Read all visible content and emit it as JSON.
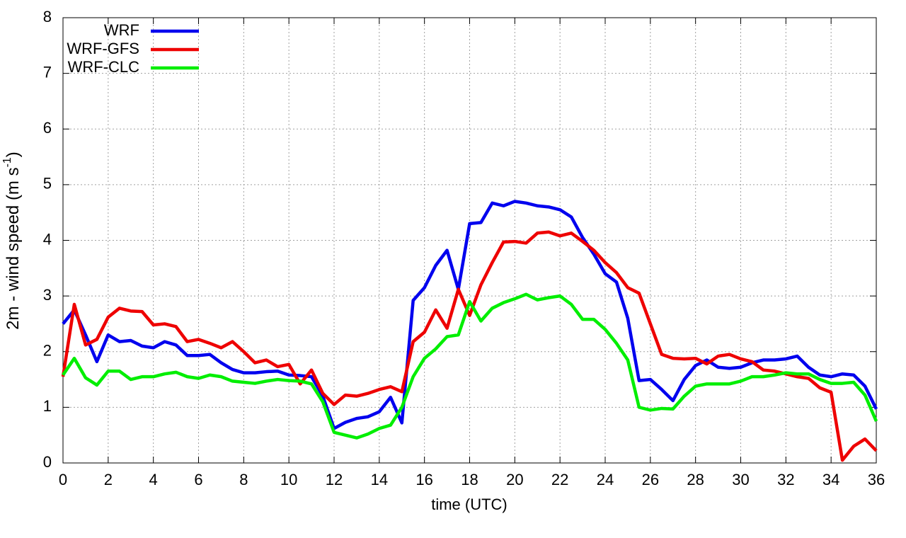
{
  "chart_data": {
    "type": "line",
    "xlabel": "time (UTC)",
    "ylabel": {
      "main": "2m - wind speed  (m s",
      "sup": "-1",
      "end": ")"
    },
    "x": [
      0,
      0.5,
      1,
      1.5,
      2,
      2.5,
      3,
      3.5,
      4,
      4.5,
      5,
      5.5,
      6,
      6.5,
      7,
      7.5,
      8,
      8.5,
      9,
      9.5,
      10,
      10.5,
      11,
      11.5,
      12,
      12.5,
      13,
      13.5,
      14,
      14.5,
      15,
      15.5,
      16,
      16.5,
      17,
      17.5,
      18,
      18.5,
      19,
      19.5,
      20,
      20.5,
      21,
      21.5,
      22,
      22.5,
      23,
      23.5,
      24,
      24.5,
      25,
      25.5,
      26,
      26.5,
      27,
      27.5,
      28,
      28.5,
      29,
      29.5,
      30,
      30.5,
      31,
      31.5,
      32,
      32.5,
      33,
      33.5,
      34,
      34.5,
      35,
      35.5,
      36
    ],
    "series": [
      {
        "name": "WRF",
        "color": "#0000ee",
        "values": [
          2.5,
          2.75,
          2.3,
          1.82,
          2.3,
          2.18,
          2.2,
          2.1,
          2.07,
          2.18,
          2.12,
          1.93,
          1.93,
          1.95,
          1.8,
          1.68,
          1.62,
          1.62,
          1.64,
          1.65,
          1.58,
          1.57,
          1.55,
          1.2,
          0.62,
          0.73,
          0.8,
          0.83,
          0.92,
          1.18,
          0.72,
          2.92,
          3.15,
          3.55,
          3.82,
          3.12,
          4.3,
          4.32,
          4.67,
          4.62,
          4.7,
          4.67,
          4.62,
          4.6,
          4.55,
          4.42,
          4.05,
          3.75,
          3.4,
          3.25,
          2.6,
          1.48,
          1.5,
          1.32,
          1.12,
          1.5,
          1.75,
          1.85,
          1.72,
          1.7,
          1.72,
          1.8,
          1.85,
          1.85,
          1.87,
          1.92,
          1.72,
          1.58,
          1.55,
          1.6,
          1.58,
          1.38,
          0.97
        ]
      },
      {
        "name": "WRF-GFS",
        "color": "#ee0000",
        "values": [
          1.55,
          2.85,
          2.12,
          2.22,
          2.62,
          2.78,
          2.73,
          2.72,
          2.48,
          2.5,
          2.45,
          2.18,
          2.22,
          2.15,
          2.07,
          2.18,
          2.0,
          1.8,
          1.85,
          1.73,
          1.77,
          1.42,
          1.67,
          1.25,
          1.05,
          1.22,
          1.2,
          1.25,
          1.32,
          1.37,
          1.28,
          2.18,
          2.35,
          2.75,
          2.42,
          3.12,
          2.65,
          3.2,
          3.6,
          3.97,
          3.98,
          3.95,
          4.13,
          4.15,
          4.08,
          4.13,
          3.98,
          3.82,
          3.6,
          3.42,
          3.15,
          3.05,
          2.5,
          1.95,
          1.88,
          1.87,
          1.88,
          1.78,
          1.92,
          1.95,
          1.87,
          1.82,
          1.67,
          1.65,
          1.6,
          1.55,
          1.52,
          1.35,
          1.27,
          0.05,
          0.3,
          0.43,
          0.22
        ]
      },
      {
        "name": "WRF-CLC",
        "color": "#00ee00",
        "values": [
          1.58,
          1.88,
          1.53,
          1.4,
          1.65,
          1.65,
          1.5,
          1.55,
          1.55,
          1.6,
          1.63,
          1.55,
          1.52,
          1.58,
          1.55,
          1.47,
          1.45,
          1.43,
          1.47,
          1.5,
          1.48,
          1.47,
          1.42,
          1.1,
          0.55,
          0.5,
          0.45,
          0.52,
          0.62,
          0.68,
          1.0,
          1.55,
          1.88,
          2.05,
          2.27,
          2.3,
          2.9,
          2.55,
          2.78,
          2.88,
          2.95,
          3.03,
          2.93,
          2.97,
          3.0,
          2.85,
          2.58,
          2.58,
          2.4,
          2.15,
          1.85,
          1.0,
          0.95,
          0.98,
          0.97,
          1.2,
          1.38,
          1.42,
          1.42,
          1.42,
          1.47,
          1.55,
          1.55,
          1.58,
          1.62,
          1.6,
          1.6,
          1.5,
          1.43,
          1.43,
          1.45,
          1.22,
          0.75
        ]
      }
    ],
    "xlim": [
      0,
      36
    ],
    "xticks": [
      0,
      2,
      4,
      6,
      8,
      10,
      12,
      14,
      16,
      18,
      20,
      22,
      24,
      26,
      28,
      30,
      32,
      34,
      36
    ],
    "ylim": [
      0,
      8
    ],
    "yticks": [
      0,
      1,
      2,
      3,
      4,
      5,
      6,
      7,
      8
    ],
    "grid": true,
    "legend": "top-left"
  }
}
